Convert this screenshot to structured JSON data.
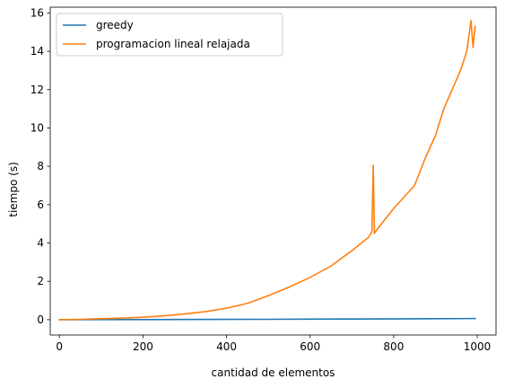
{
  "chart_data": {
    "type": "line",
    "title": "",
    "xlabel": "cantidad de elementos",
    "ylabel": "tiempo (s)",
    "xlim": [
      -22,
      1045
    ],
    "ylim": [
      -0.8,
      16.3
    ],
    "xticks": [
      0,
      200,
      400,
      600,
      800,
      1000
    ],
    "yticks": [
      0,
      2,
      4,
      6,
      8,
      10,
      12,
      14,
      16
    ],
    "grid": false,
    "legend_position": "upper-left",
    "series": [
      {
        "name": "greedy",
        "color": "#1f77b4",
        "x": [
          0,
          100,
          200,
          300,
          400,
          500,
          600,
          700,
          800,
          900,
          995
        ],
        "y": [
          0.0,
          0.003,
          0.006,
          0.01,
          0.015,
          0.02,
          0.027,
          0.034,
          0.042,
          0.05,
          0.06
        ]
      },
      {
        "name": "programacion lineal relajada",
        "color": "#ff7f0e",
        "x": [
          0,
          50,
          100,
          150,
          200,
          250,
          300,
          350,
          400,
          450,
          500,
          550,
          600,
          650,
          700,
          740,
          748,
          751,
          754,
          760,
          800,
          850,
          875,
          900,
          920,
          940,
          960,
          975,
          985,
          990,
          995
        ],
        "y": [
          0.0,
          0.02,
          0.05,
          0.08,
          0.13,
          0.2,
          0.3,
          0.42,
          0.6,
          0.85,
          1.25,
          1.7,
          2.2,
          2.8,
          3.6,
          4.3,
          4.6,
          8.05,
          4.5,
          4.7,
          5.8,
          7.0,
          8.4,
          9.6,
          11.0,
          12.0,
          13.0,
          14.0,
          15.6,
          14.2,
          15.3
        ]
      }
    ]
  }
}
